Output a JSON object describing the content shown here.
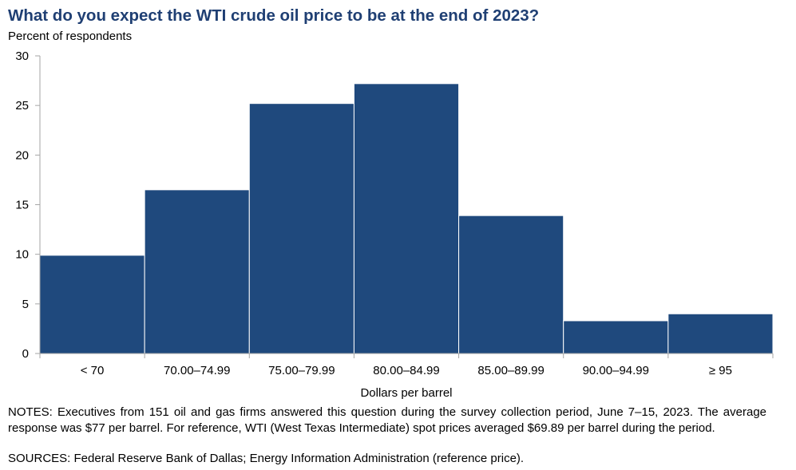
{
  "chart_data": {
    "type": "bar",
    "title": "What do you expect the WTI crude oil price to be at the end of 2023?",
    "ylabel": "Percent of respondents",
    "xlabel": "Dollars per barrel",
    "categories": [
      "< 70",
      "70.00–74.99",
      "75.00–79.99",
      "80.00–84.99",
      "85.00–89.99",
      "90.00–94.99",
      "≥ 95"
    ],
    "values": [
      9.9,
      16.5,
      25.2,
      27.2,
      13.9,
      3.3,
      4.0
    ],
    "ylim": [
      0,
      30
    ],
    "yticks": [
      0,
      5,
      10,
      15,
      20,
      25,
      30
    ],
    "grid": false,
    "bar_color": "#1f497d"
  },
  "notes": "NOTES: Executives from 151 oil and gas firms answered this question during the survey collection period, June 7–15, 2023. The average response was $77 per barrel. For reference, WTI (West Texas Intermediate) spot prices averaged $69.89 per barrel during the period.",
  "sources": "SOURCES: Federal Reserve Bank of Dallas; Energy Information Administration (reference price)."
}
